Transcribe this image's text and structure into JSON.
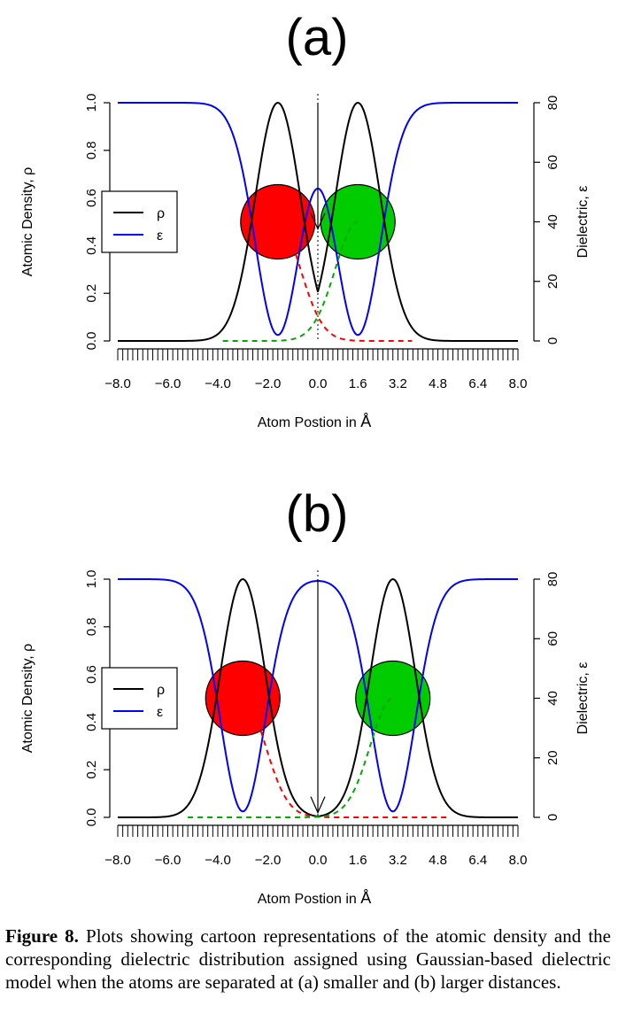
{
  "chart_data": [
    {
      "type": "line",
      "panel_label": "(a)",
      "xlabel": "Atom Postion in",
      "xlabel_unit": "Å",
      "ylabel_left": "Atomic Density,  ρ",
      "ylabel_right": "Dielectric, ε",
      "xlim": [
        -8.0,
        8.0
      ],
      "ylim_left": [
        0.0,
        1.0
      ],
      "ylim_right": [
        0,
        80
      ],
      "x_tick_labels": [
        "−8.0",
        "−6.0",
        "−4.0",
        "−2.0",
        "0.0",
        "1.6",
        "3.2",
        "4.8",
        "6.4",
        "8.0"
      ],
      "x_tick_values": [
        -8.0,
        -6.0,
        -4.0,
        -2.0,
        0.0,
        1.6,
        3.2,
        4.8,
        6.4,
        8.0
      ],
      "y_left_ticks": [
        "0.0",
        "0.2",
        "0.4",
        "0.6",
        "0.8",
        "1.0"
      ],
      "y_right_ticks": [
        "0",
        "20",
        "40",
        "60",
        "80"
      ],
      "legend": [
        {
          "symbol": "ρ",
          "color": "#000000"
        },
        {
          "symbol": "ε",
          "color": "#0000ff"
        }
      ],
      "atoms": [
        {
          "center": -1.6,
          "color": "#ff0000"
        },
        {
          "center": 1.6,
          "color": "#00cc00"
        }
      ],
      "series": [
        {
          "key": "rho",
          "color": "#000000",
          "type": "gaussian_pair",
          "centers": [
            -1.6,
            1.6
          ],
          "peak": 1.0
        },
        {
          "key": "eps",
          "color": "#0000ff",
          "type": "dielectric",
          "centers": [
            -1.6,
            1.6
          ],
          "eps_min": 2,
          "eps_max": 80
        },
        {
          "key": "rho_left_atom",
          "color": "#ff0000",
          "dashed": true,
          "center": -1.6
        },
        {
          "key": "rho_right_atom",
          "color": "#00aa00",
          "dashed": true,
          "center": 1.6
        }
      ],
      "arrow_to": 0.47
    },
    {
      "type": "line",
      "panel_label": "(b)",
      "xlabel": "Atom Postion in",
      "xlabel_unit": "Å",
      "ylabel_left": "Atomic Density,  ρ",
      "ylabel_right": "Dielectric, ε",
      "xlim": [
        -8.0,
        8.0
      ],
      "ylim_left": [
        0.0,
        1.0
      ],
      "ylim_right": [
        0,
        80
      ],
      "x_tick_labels": [
        "−8.0",
        "−6.0",
        "−4.0",
        "−2.0",
        "0.0",
        "1.6",
        "3.2",
        "4.8",
        "6.4",
        "8.0"
      ],
      "x_tick_values": [
        -8.0,
        -6.0,
        -4.0,
        -2.0,
        0.0,
        1.6,
        3.2,
        4.8,
        6.4,
        8.0
      ],
      "y_left_ticks": [
        "0.0",
        "0.2",
        "0.4",
        "0.6",
        "0.8",
        "1.0"
      ],
      "y_right_ticks": [
        "0",
        "20",
        "40",
        "60",
        "80"
      ],
      "legend": [
        {
          "symbol": "ρ",
          "color": "#000000"
        },
        {
          "symbol": "ε",
          "color": "#0000ff"
        }
      ],
      "atoms": [
        {
          "center": -3.0,
          "color": "#ff0000"
        },
        {
          "center": 3.0,
          "color": "#00cc00"
        }
      ],
      "series": [
        {
          "key": "rho",
          "color": "#000000",
          "type": "gaussian_pair",
          "centers": [
            -3.0,
            3.0
          ],
          "peak": 1.0
        },
        {
          "key": "eps",
          "color": "#0000ff",
          "type": "dielectric",
          "centers": [
            -3.0,
            3.0
          ],
          "eps_min": 2,
          "eps_max": 80
        },
        {
          "key": "rho_left_atom",
          "color": "#ff0000",
          "dashed": true,
          "center": -3.0
        },
        {
          "key": "rho_right_atom",
          "color": "#00aa00",
          "dashed": true,
          "center": 3.0
        }
      ],
      "arrow_to": 0.02
    }
  ],
  "caption": {
    "label": "Figure 8.",
    "text": " Plots showing cartoon representations of the atomic density and the corresponding dielectric distribution assigned using Gaussian-based dielectric model when the atoms are separated at (a) smaller and (b) larger distances."
  }
}
